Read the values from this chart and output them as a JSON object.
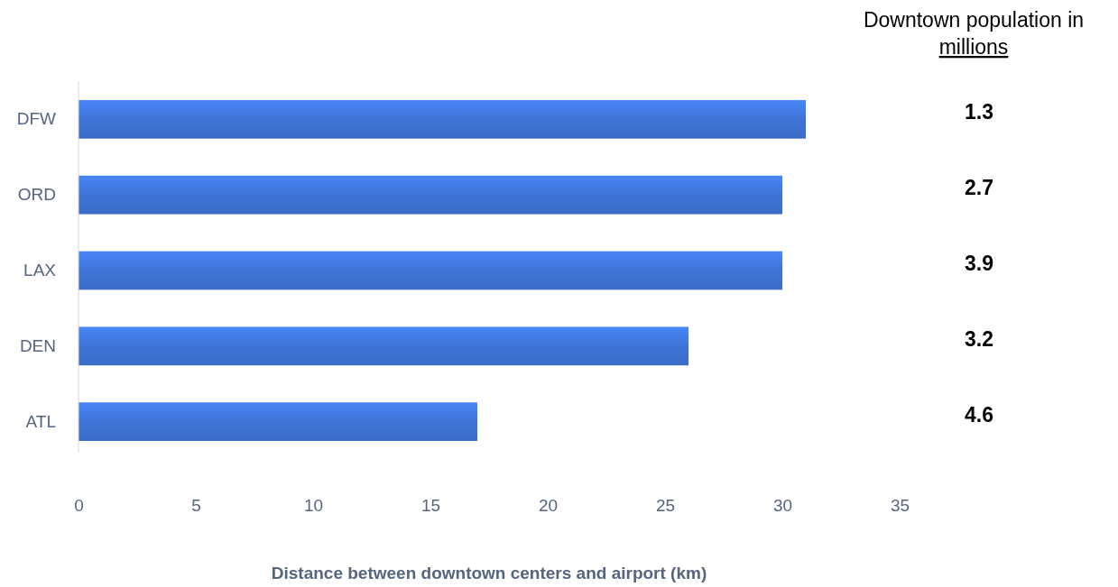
{
  "chart_data": {
    "type": "bar",
    "orientation": "horizontal",
    "xlabel": "Distance between downtown centers and airport (km)",
    "categories": [
      "DFW",
      "ORD",
      "LAX",
      "DEN",
      "ATL"
    ],
    "values": [
      31,
      30,
      30,
      26,
      17
    ],
    "color": "#3b6cc8",
    "xlim": [
      0,
      35
    ],
    "xticks": [
      0,
      5,
      10,
      15,
      20,
      25,
      30,
      35
    ],
    "grid": false,
    "annotations": [
      "Downtown population in millions",
      "1.3",
      "2.7",
      "3.9",
      "3.2",
      "4.6"
    ]
  }
}
